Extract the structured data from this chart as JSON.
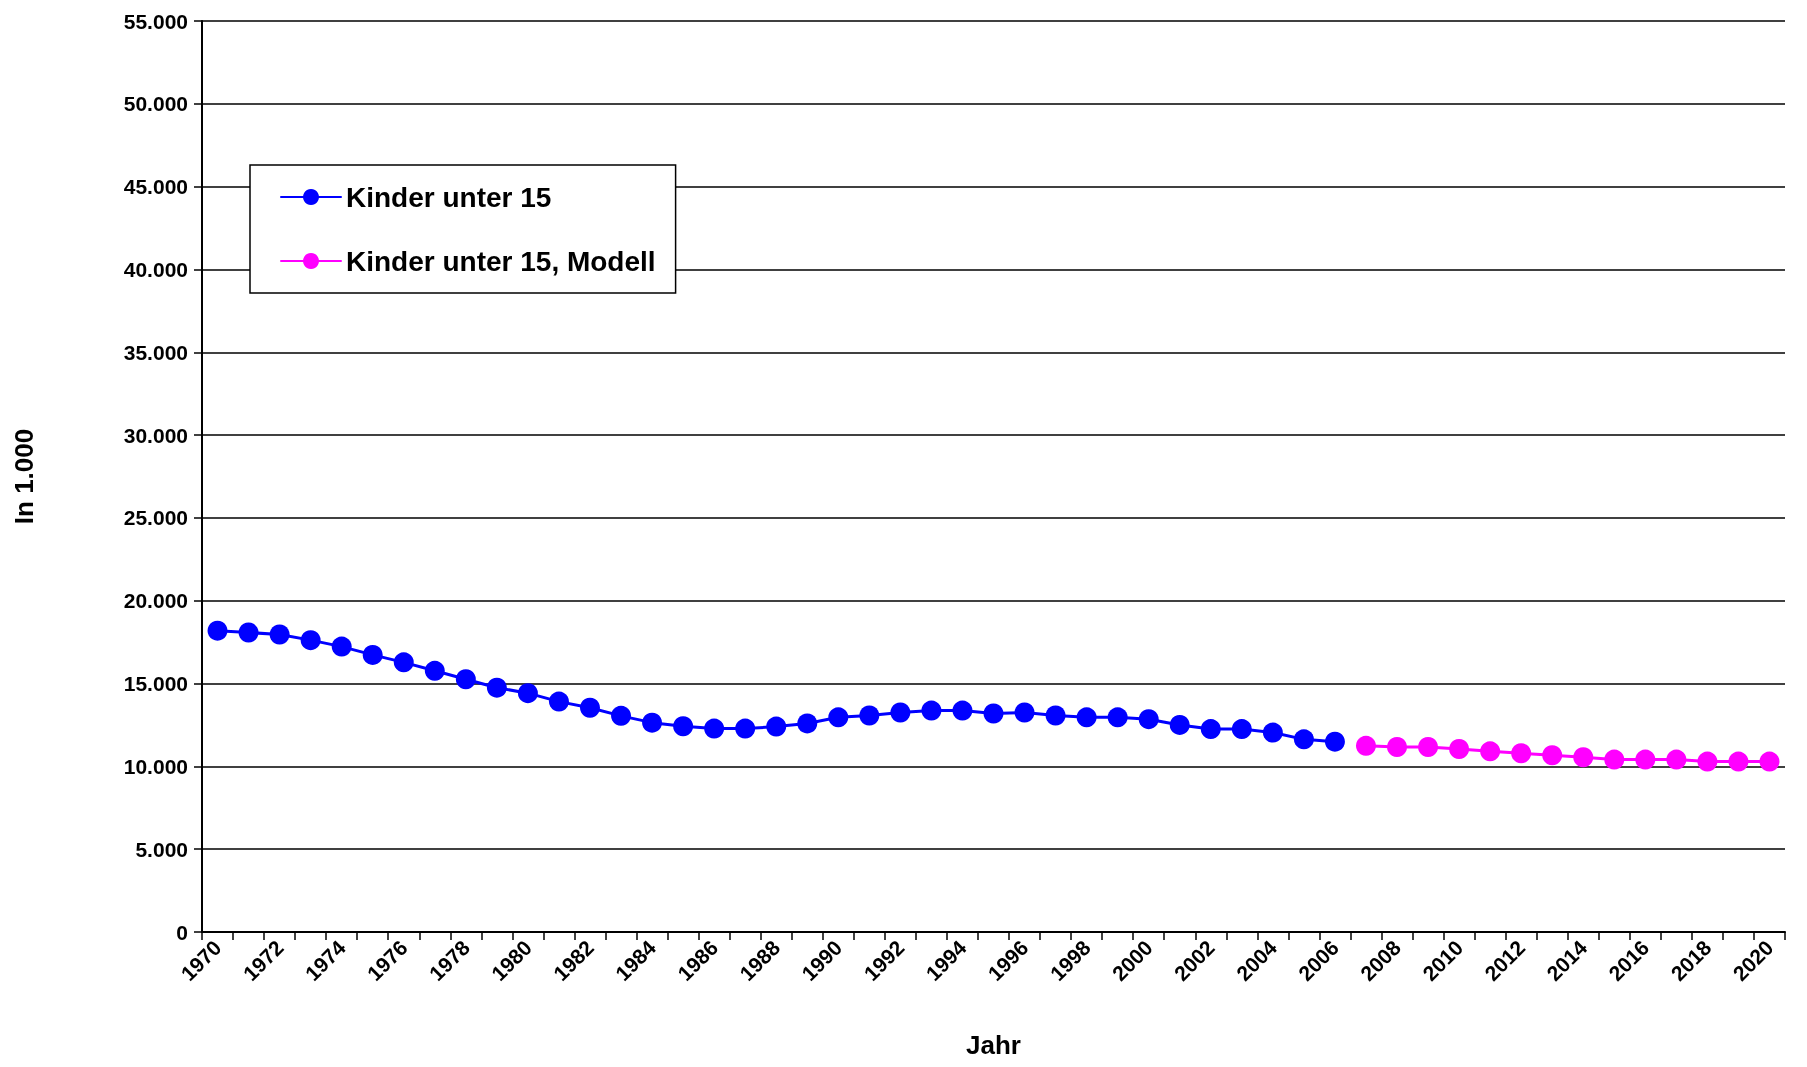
{
  "chart_data": {
    "type": "line",
    "xlabel": "Jahr",
    "ylabel": "In 1.000",
    "categories": [
      "1970",
      null,
      "1972",
      null,
      "1974",
      null,
      "1976",
      null,
      "1978",
      null,
      "1980",
      null,
      "1982",
      null,
      "1984",
      null,
      "1986",
      null,
      "1988",
      null,
      "1990",
      null,
      "1992",
      null,
      "1994",
      null,
      "1996",
      null,
      "1998",
      null,
      "2000",
      null,
      "2002",
      null,
      "2004",
      null,
      "2006",
      null,
      "2008",
      null,
      "2010",
      null,
      "2012",
      null,
      "2014",
      null,
      "2016",
      null,
      "2018",
      null,
      "2020"
    ],
    "series": [
      {
        "name": "Kinder unter 15",
        "color": "#0000ff",
        "values": [
          18190,
          18080,
          17960,
          17620,
          17230,
          16730,
          16280,
          15770,
          15260,
          14750,
          14420,
          13910,
          13540,
          13050,
          12640,
          12420,
          12280,
          12280,
          12400,
          12590,
          12960,
          13070,
          13250,
          13370,
          13370,
          13190,
          13250,
          13070,
          12960,
          12960,
          12850,
          12500,
          12250,
          12250,
          12040,
          11630,
          11490,
          null,
          null,
          null,
          null,
          null,
          null,
          null,
          null,
          null,
          null,
          null,
          null,
          null,
          null
        ]
      },
      {
        "name": "Kinder unter 15, Modell",
        "color": "#ff00ff",
        "values": [
          null,
          null,
          null,
          null,
          null,
          null,
          null,
          null,
          null,
          null,
          null,
          null,
          null,
          null,
          null,
          null,
          null,
          null,
          null,
          null,
          null,
          null,
          null,
          null,
          null,
          null,
          null,
          null,
          null,
          null,
          null,
          null,
          null,
          null,
          null,
          null,
          null,
          11240,
          11170,
          11170,
          11050,
          10910,
          10790,
          10670,
          10550,
          10410,
          10410,
          10410,
          10290,
          10290,
          10290
        ]
      }
    ],
    "ylim": [
      0,
      55000
    ],
    "yticks": [
      0,
      {
        "value": 5000,
        "label": "5.000"
      },
      {
        "value": 10000,
        "label": "10.000"
      },
      {
        "value": 15000,
        "label": "15.000"
      },
      {
        "value": 20000,
        "label": "20.000"
      },
      {
        "value": 25000,
        "label": "25.000"
      },
      {
        "value": 30000,
        "label": "30.000"
      },
      {
        "value": 35000,
        "label": "35.000"
      },
      {
        "value": 40000,
        "label": "40.000"
      },
      {
        "value": 45000,
        "label": "45.000"
      },
      {
        "value": 50000,
        "label": "50.000"
      },
      {
        "value": 55000,
        "label": "55.000"
      }
    ],
    "grid": "y",
    "legend": "top left",
    "marker": "circle",
    "line_style": "solid"
  }
}
